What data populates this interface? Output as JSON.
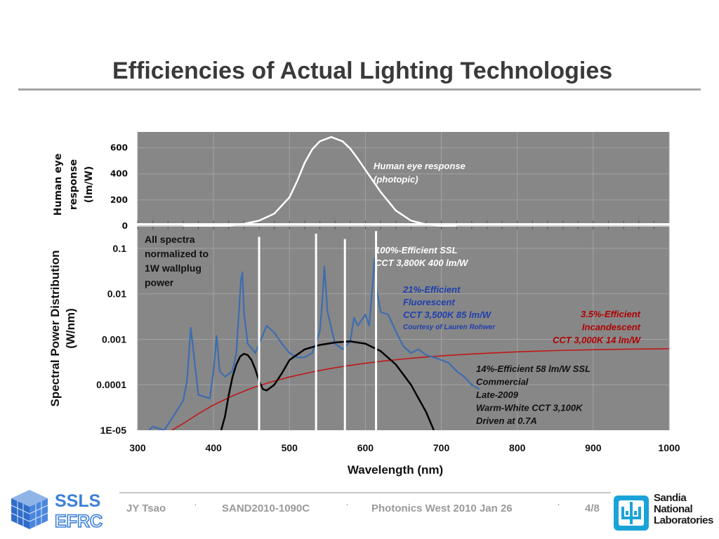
{
  "slide": {
    "title": "Efficiencies of Actual Lighting Technologies"
  },
  "footer": {
    "author": "JY Tsao",
    "report": "SAND2010-1090C",
    "venue": "Photonics West 2010 Jan 26",
    "page": "4/8",
    "separator": "·",
    "logo_left": [
      "SSLS",
      "EFRC"
    ],
    "logo_right": [
      "Sandia",
      "National",
      "Laboratories"
    ]
  },
  "colors": {
    "plot_bg": "#878787",
    "eye_curve": "#ffffff",
    "ssl_ideal": "#ffffff",
    "fluorescent": "#3d6db0",
    "incandescent": "#c01818",
    "led": "#000000",
    "annotation_blue": "#1f3fae",
    "annotation_red": "#b00000"
  },
  "chart_data": [
    {
      "type": "line",
      "ylabel": "Human eye response (lm/W)",
      "yticks": [
        "600",
        "400",
        "200",
        "0"
      ],
      "ylim": [
        0,
        700
      ],
      "xlim": [
        300,
        1000
      ],
      "grid": true,
      "series": [
        {
          "name": "Human eye response (photopic)",
          "x": [
            360,
            400,
            420,
            440,
            460,
            480,
            500,
            510,
            520,
            530,
            540,
            555,
            570,
            580,
            590,
            600,
            620,
            640,
            660,
            680,
            700,
            720
          ],
          "y": [
            0,
            1,
            3,
            16,
            41,
            95,
            220,
            343,
            484,
            588,
            650,
            683,
            649,
            594,
            516,
            430,
            261,
            119,
            41,
            12,
            3,
            0
          ]
        }
      ]
    },
    {
      "type": "line",
      "xlabel": "Wavelength (nm)",
      "ylabel": "Spectral Power Distribution (W/nm)",
      "yscale": "log",
      "ylim": [
        1e-05,
        0.3
      ],
      "xlim": [
        300,
        1000
      ],
      "xticks": [
        "300",
        "400",
        "500",
        "600",
        "700",
        "800",
        "900",
        "1000"
      ],
      "yticks": [
        "0.1",
        "0.01",
        "0.001",
        "0.0001",
        "1E-05"
      ],
      "grid": true,
      "series": [
        {
          "name": "100%-Efficient SSL",
          "style": "lines",
          "x": [
            460,
            535,
            573,
            614
          ],
          "y": [
            0.18,
            0.21,
            0.16,
            0.24
          ]
        },
        {
          "name": "21%-Efficient Fluorescent",
          "x": [
            315,
            320,
            335,
            345,
            360,
            365,
            370,
            380,
            395,
            400,
            404,
            408,
            415,
            425,
            430,
            436,
            438,
            440,
            445,
            455,
            470,
            480,
            490,
            500,
            510,
            520,
            530,
            540,
            543,
            546,
            550,
            560,
            570,
            580,
            585,
            590,
            600,
            605,
            610,
            612,
            615,
            620,
            630,
            640,
            650,
            660,
            670,
            680,
            690,
            700,
            710,
            720,
            730,
            740,
            750
          ],
          "y": [
            7e-06,
            1.2e-05,
            8e-06,
            1.8e-05,
            4.5e-05,
            0.00012,
            0.0018,
            6e-05,
            5e-05,
            0.0002,
            0.0012,
            0.0002,
            0.00015,
            0.0002,
            0.0005,
            0.02,
            0.03,
            0.004,
            0.0008,
            0.0005,
            0.002,
            0.0014,
            0.0008,
            0.0005,
            0.0004,
            0.0004,
            0.0005,
            0.0015,
            0.006,
            0.04,
            0.004,
            0.0008,
            0.0006,
            0.0009,
            0.003,
            0.002,
            0.0035,
            0.002,
            0.02,
            0.06,
            0.012,
            0.004,
            0.0035,
            0.0015,
            0.0007,
            0.0005,
            0.0006,
            0.00045,
            0.0004,
            0.00035,
            0.0003,
            0.0002,
            0.00015,
            0.0001,
            8e-05
          ]
        },
        {
          "name": "3.5%-Efficient Incandescent",
          "x": [
            345,
            360,
            380,
            400,
            425,
            450,
            475,
            500,
            525,
            550,
            575,
            600,
            625,
            650,
            675,
            700,
            725,
            750,
            800,
            850,
            900,
            950,
            1000
          ],
          "y": [
            1e-05,
            1.4e-05,
            2.3e-05,
            3.6e-05,
            5.7e-05,
            8.4e-05,
            0.000114,
            0.000148,
            0.000184,
            0.000222,
            0.00026,
            0.000297,
            0.000334,
            0.000369,
            0.000402,
            0.000432,
            0.00046,
            0.000485,
            0.00053,
            0.000565,
            0.00059,
            0.00061,
            0.00062
          ]
        },
        {
          "name": "14%-Efficient 58 lm/W SSL",
          "x": [
            410,
            415,
            420,
            425,
            430,
            435,
            440,
            445,
            450,
            455,
            460,
            465,
            470,
            480,
            490,
            500,
            520,
            540,
            560,
            580,
            600,
            620,
            640,
            660,
            680,
            690
          ],
          "y": [
            1e-05,
            2e-05,
            6e-05,
            0.00015,
            0.00028,
            0.00042,
            0.00048,
            0.00045,
            0.00035,
            0.00022,
            0.00012,
            8e-05,
            7.5e-05,
            0.0001,
            0.00018,
            0.00035,
            0.0006,
            0.00075,
            0.00085,
            0.0009,
            0.0008,
            0.00055,
            0.00028,
            0.0001,
            2.5e-05,
            1e-05
          ]
        }
      ]
    }
  ],
  "annotations": {
    "eye_label": [
      "Human eye response",
      "(photopic)"
    ],
    "normalized": [
      "All spectra",
      "normalized to",
      "1W wallplug",
      "power"
    ],
    "ssl_ideal": [
      "100%-Efficient SSL",
      "CCT 3,800K 400 lm/W"
    ],
    "fluorescent": [
      "21%-Efficient",
      "Fluorescent",
      "CCT 3,500K 85 lm/W"
    ],
    "courtesy": "Courtesy of Lauren Rohwer",
    "incandescent": [
      "3.5%-Efficient",
      "Incandescent",
      "CCT 3,000K 14 lm/W"
    ],
    "led": [
      "14%-Efficient 58 lm/W SSL",
      "Commercial",
      "Late-2009",
      "Warm-White CCT 3,100K",
      "Driven at 0.7A"
    ]
  }
}
